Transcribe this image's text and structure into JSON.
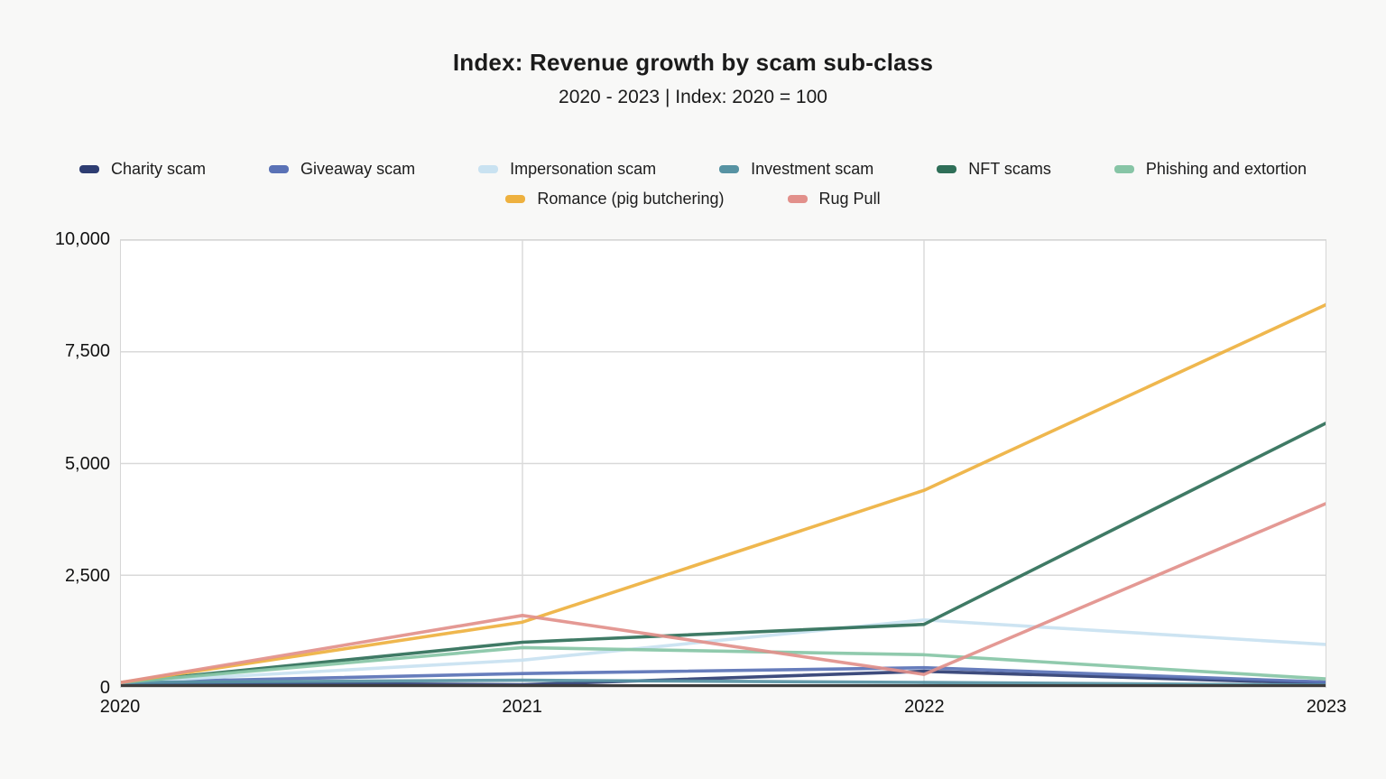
{
  "header": {
    "title": "Index: Revenue growth by scam sub-class",
    "subtitle": "2020 - 2023 | Index: 2020 = 100"
  },
  "colors": {
    "page_background": "#f8f8f7",
    "plot_background": "#ffffff",
    "grid_line": "#d9d9d9",
    "axis_line": "#3d3d3d",
    "text": "#1a1a1a"
  },
  "chart_data": {
    "type": "line",
    "title": "Index: Revenue growth by scam sub-class",
    "subtitle": "2020 - 2023 | Index: 2020 = 100",
    "x": [
      2020,
      2021,
      2022,
      2023
    ],
    "x_tick_labels": [
      "2020",
      "2021",
      "2022",
      "2023"
    ],
    "y_ticks": [
      0,
      2500,
      5000,
      7500,
      10000
    ],
    "y_tick_labels": [
      "0",
      "2,500",
      "5,000",
      "7,500",
      "10,000"
    ],
    "ylim": [
      0,
      10000
    ],
    "grid": true,
    "legend_position": "top",
    "series": [
      {
        "name": "Charity scam",
        "color": "#2e3d72",
        "values": [
          100,
          50,
          350,
          80
        ]
      },
      {
        "name": "Giveaway scam",
        "color": "#5a72b6",
        "values": [
          100,
          300,
          430,
          110
        ]
      },
      {
        "name": "Impersonation scam",
        "color": "#c9e2f1",
        "values": [
          100,
          600,
          1500,
          950
        ]
      },
      {
        "name": "Investment scam",
        "color": "#5793a3",
        "values": [
          100,
          150,
          100,
          40
        ]
      },
      {
        "name": "NFT scams",
        "color": "#2f6f58",
        "values": [
          100,
          1000,
          1400,
          5900
        ]
      },
      {
        "name": "Phishing and extortion",
        "color": "#87c5a6",
        "values": [
          100,
          880,
          720,
          180
        ]
      },
      {
        "name": "Romance (pig butchering)",
        "color": "#eeb13f",
        "values": [
          100,
          1450,
          4400,
          8550
        ]
      },
      {
        "name": "Rug Pull",
        "color": "#e2908b",
        "values": [
          100,
          1600,
          280,
          4100
        ]
      }
    ]
  }
}
